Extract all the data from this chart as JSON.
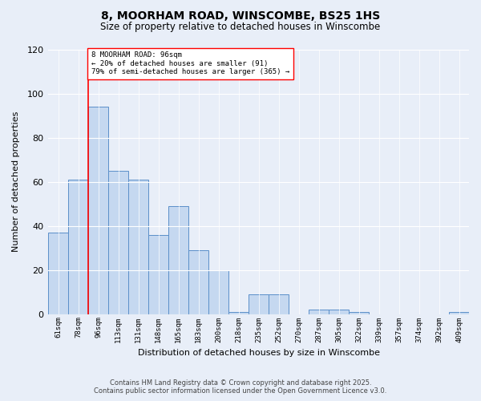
{
  "title1": "8, MOORHAM ROAD, WINSCOMBE, BS25 1HS",
  "title2": "Size of property relative to detached houses in Winscombe",
  "xlabel": "Distribution of detached houses by size in Winscombe",
  "ylabel": "Number of detached properties",
  "categories": [
    "61sqm",
    "78sqm",
    "96sqm",
    "113sqm",
    "131sqm",
    "148sqm",
    "165sqm",
    "183sqm",
    "200sqm",
    "218sqm",
    "235sqm",
    "252sqm",
    "270sqm",
    "287sqm",
    "305sqm",
    "322sqm",
    "339sqm",
    "357sqm",
    "374sqm",
    "392sqm",
    "409sqm"
  ],
  "values": [
    37,
    61,
    94,
    65,
    61,
    36,
    49,
    29,
    20,
    1,
    9,
    9,
    0,
    2,
    2,
    1,
    0,
    0,
    0,
    0,
    1
  ],
  "bar_color": "#c5d8f0",
  "bar_edge_color": "#5b8fc9",
  "red_line_index": 2,
  "annotation_title": "8 MOORHAM ROAD: 96sqm",
  "annotation_line1": "← 20% of detached houses are smaller (91)",
  "annotation_line2": "79% of semi-detached houses are larger (365) →",
  "ylim": [
    0,
    120
  ],
  "yticks": [
    0,
    20,
    40,
    60,
    80,
    100,
    120
  ],
  "footer1": "Contains HM Land Registry data © Crown copyright and database right 2025.",
  "footer2": "Contains public sector information licensed under the Open Government Licence v3.0.",
  "bg_color": "#e8eef8"
}
